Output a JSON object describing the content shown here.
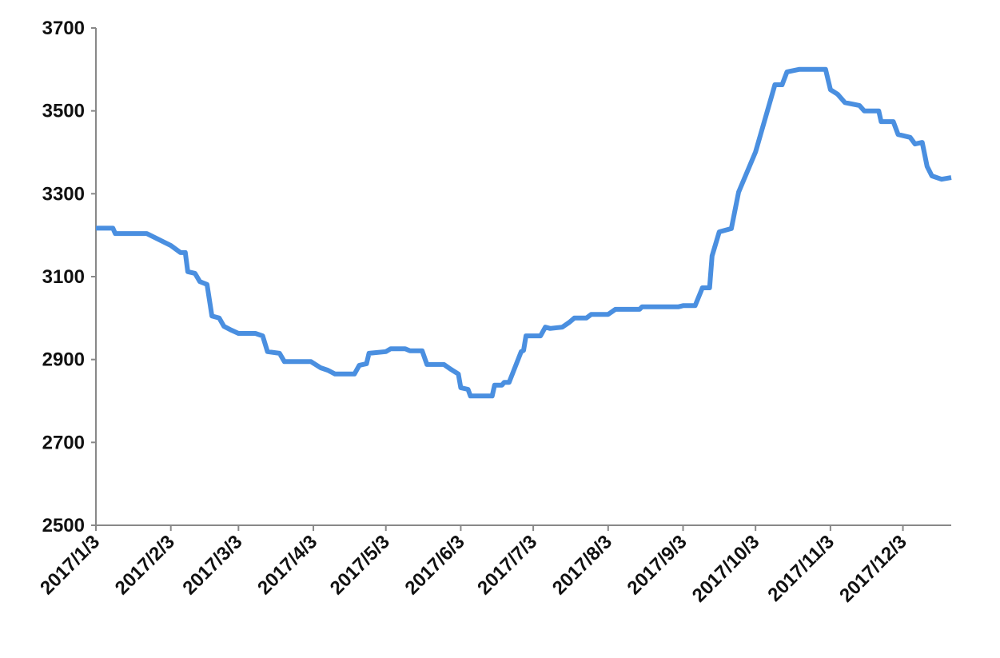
{
  "chart_data": {
    "type": "line",
    "x": [
      "2017/1/3",
      "2017/1/10",
      "2017/1/11",
      "2017/1/24",
      "2017/2/3",
      "2017/2/7",
      "2017/2/9",
      "2017/2/10",
      "2017/2/13",
      "2017/2/15",
      "2017/2/18",
      "2017/2/20",
      "2017/2/23",
      "2017/2/25",
      "2017/2/28",
      "2017/3/3",
      "2017/3/10",
      "2017/3/13",
      "2017/3/15",
      "2017/3/20",
      "2017/3/22",
      "2017/4/2",
      "2017/4/6",
      "2017/4/9",
      "2017/4/12",
      "2017/4/20",
      "2017/4/22",
      "2017/4/25",
      "2017/4/26",
      "2017/5/3",
      "2017/5/5",
      "2017/5/11",
      "2017/5/13",
      "2017/5/18",
      "2017/5/20",
      "2017/5/27",
      "2017/5/30",
      "2017/6/2",
      "2017/6/3",
      "2017/6/6",
      "2017/6/7",
      "2017/6/16",
      "2017/6/17",
      "2017/6/20",
      "2017/6/21",
      "2017/6/23",
      "2017/6/28",
      "2017/6/29",
      "2017/6/30",
      "2017/7/6",
      "2017/7/8",
      "2017/7/10",
      "2017/7/15",
      "2017/7/18",
      "2017/7/20",
      "2017/7/25",
      "2017/7/27",
      "2017/8/3",
      "2017/8/6",
      "2017/8/16",
      "2017/8/17",
      "2017/9/1",
      "2017/9/3",
      "2017/9/8",
      "2017/9/11",
      "2017/9/14",
      "2017/9/15",
      "2017/9/18",
      "2017/9/23",
      "2017/9/26",
      "2017/10/3",
      "2017/10/9",
      "2017/10/11",
      "2017/10/14",
      "2017/10/16",
      "2017/10/21",
      "2017/11/1",
      "2017/11/3",
      "2017/11/6",
      "2017/11/9",
      "2017/11/15",
      "2017/11/17",
      "2017/11/23",
      "2017/11/24",
      "2017/11/29",
      "2017/12/1",
      "2017/12/6",
      "2017/12/8",
      "2017/12/11",
      "2017/12/13",
      "2017/12/15",
      "2017/12/19",
      "2017/12/23"
    ],
    "series": [
      {
        "color": "#4a8fe0",
        "values": [
          3217,
          3217,
          3204,
          3204,
          3175,
          3158,
          3158,
          3112,
          3108,
          3088,
          3081,
          3005,
          3000,
          2980,
          2971,
          2963,
          2963,
          2957,
          2919,
          2915,
          2895,
          2895,
          2880,
          2874,
          2865,
          2865,
          2886,
          2890,
          2915,
          2919,
          2926,
          2926,
          2921,
          2921,
          2888,
          2888,
          2876,
          2865,
          2832,
          2828,
          2812,
          2812,
          2838,
          2838,
          2845,
          2845,
          2919,
          2922,
          2957,
          2957,
          2978,
          2975,
          2978,
          2990,
          3000,
          3000,
          3009,
          3009,
          3021,
          3021,
          3027,
          3027,
          3030,
          3030,
          3073,
          3073,
          3150,
          3208,
          3216,
          3304,
          3401,
          3522,
          3563,
          3563,
          3594,
          3600,
          3600,
          3551,
          3540,
          3520,
          3513,
          3500,
          3500,
          3474,
          3474,
          3443,
          3436,
          3420,
          3424,
          3366,
          3343,
          3335,
          3339
        ]
      }
    ],
    "xlim": [
      "2017/1/3",
      "2017/12/23"
    ],
    "xticks": [
      "2017/1/3",
      "2017/2/3",
      "2017/3/3",
      "2017/4/3",
      "2017/5/3",
      "2017/6/3",
      "2017/7/3",
      "2017/8/3",
      "2017/9/3",
      "2017/10/3",
      "2017/11/3",
      "2017/12/3"
    ],
    "ylim": [
      2500,
      3700
    ],
    "yticks": [
      2500,
      2700,
      2900,
      3100,
      3300,
      3500,
      3700
    ],
    "grid": false
  }
}
